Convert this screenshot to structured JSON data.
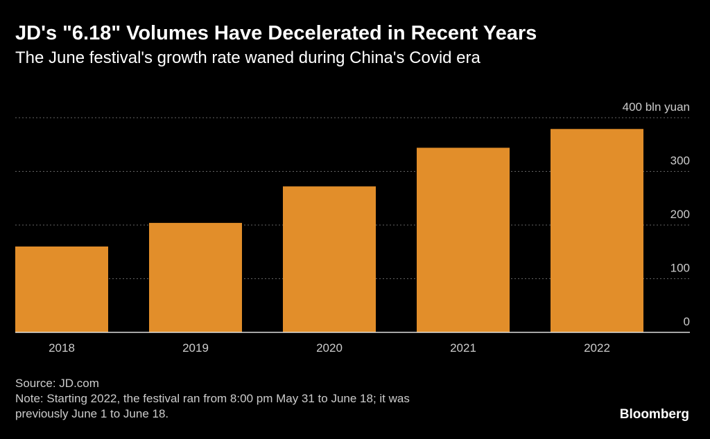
{
  "header": {
    "title": "JD's \"6.18\" Volumes Have Decelerated in Recent Years",
    "subtitle": "The June festival's growth rate waned during China's Covid era"
  },
  "footer": {
    "source": "Source: JD.com",
    "note_line1": "Note: Starting 2022, the festival ran from 8:00 pm May 31 to June 18; it was",
    "note_line2": "previously June 1 to June 18.",
    "logo": "Bloomberg"
  },
  "colors": {
    "bar": "#e28e2a",
    "grid": "#666666",
    "axis": "#dddddd",
    "text": "#ffffff",
    "muted": "#cccccc"
  },
  "chart_data": {
    "type": "bar",
    "title": "JD's \"6.18\" Volumes Have Decelerated in Recent Years",
    "subtitle": "The June festival's growth rate waned during China's Covid era",
    "xlabel": "",
    "ylabel": "bln yuan",
    "categories": [
      "2018",
      "2019",
      "2020",
      "2021",
      "2022"
    ],
    "values": [
      160,
      204,
      272,
      344,
      379
    ],
    "ylim": [
      0,
      400
    ],
    "yticks": [
      0,
      100,
      200,
      300,
      400
    ],
    "ytick_labels": [
      "0",
      "100",
      "200",
      "300",
      "400 bln yuan"
    ],
    "grid": true,
    "y_axis_side": "right"
  }
}
